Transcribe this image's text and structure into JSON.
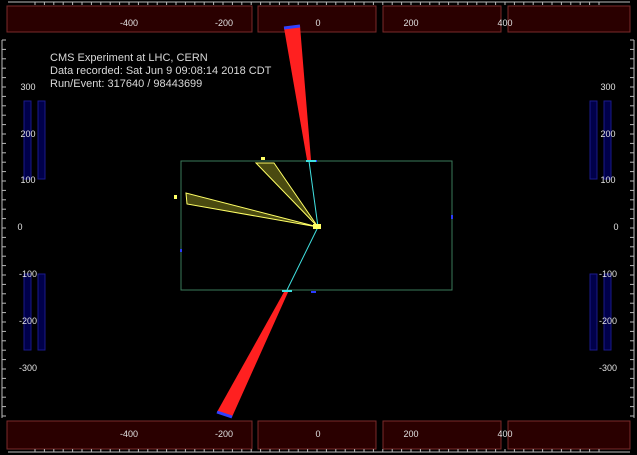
{
  "event_info": {
    "experiment": "CMS Experiment at LHC, CERN",
    "recorded": "Data recorded: Sat Jun  9 09:08:14 2018 CDT",
    "run_event": "Run/Event: 317640 / 98443699"
  },
  "axes": {
    "x_ticks": [
      "-400",
      "-200",
      "0",
      "200",
      "400"
    ],
    "y_ticks": [
      "300",
      "200",
      "100",
      "0",
      "-100",
      "-200",
      "-300"
    ]
  },
  "colors": {
    "background": "#000000",
    "endcap_fill": "#2a0000",
    "endcap_stroke": "#7a2a2a",
    "muon_chamber": "#00004a",
    "muon_chamber_stroke": "#1a1a8a",
    "tracker_box": "#3a7a5a",
    "track": "#40e0e0",
    "jet": "#ffff66",
    "jet_fill": "#4a4a10",
    "energy_tower": "#ff2020",
    "tower_cap": "#3040ff"
  }
}
